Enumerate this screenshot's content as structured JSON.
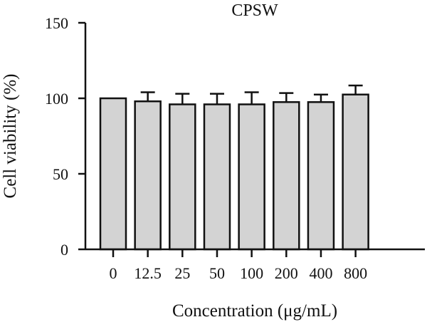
{
  "chart_data": {
    "type": "bar",
    "title": "CPSW",
    "xlabel": "Concentration (μg/mL)",
    "ylabel": "Cell viability (%)",
    "categories": [
      "0",
      "12.5",
      "25",
      "50",
      "100",
      "200",
      "400",
      "800"
    ],
    "values": [
      100,
      98,
      96,
      96,
      96,
      97.5,
      97.5,
      102.5
    ],
    "error_upper": [
      0,
      6,
      7,
      7,
      8,
      6,
      5,
      6
    ],
    "ylim": [
      0,
      150
    ],
    "y_ticks": [
      "0",
      "50",
      "100",
      "150"
    ],
    "grid": false,
    "legend": "none",
    "colors": {
      "bar_fill": "#d3d3d3",
      "bar_stroke": "#111111",
      "axis": "#111111",
      "text": "#111111"
    }
  }
}
